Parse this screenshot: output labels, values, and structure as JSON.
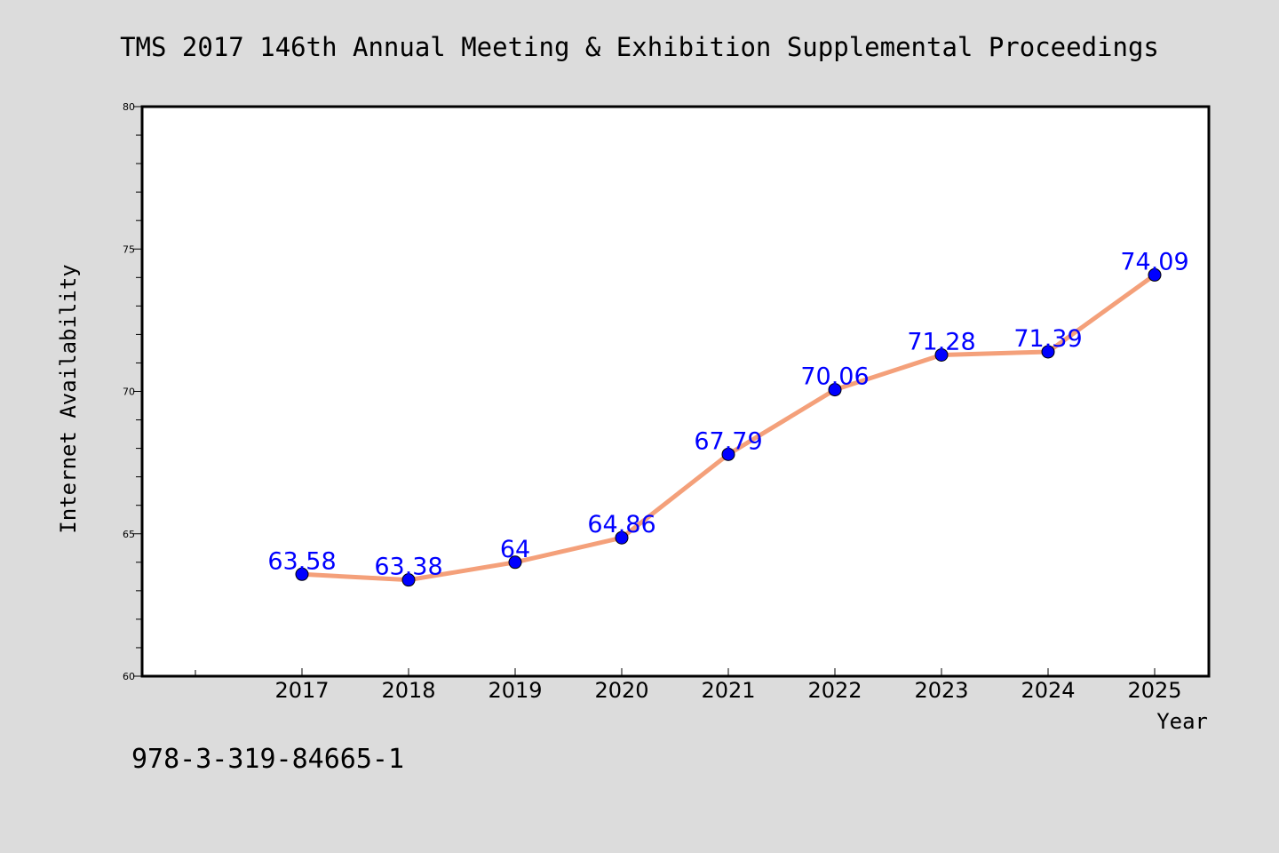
{
  "chart_data": {
    "type": "line",
    "title": "TMS 2017 146th Annual Meeting & Exhibition Supplemental Proceedings",
    "xlabel": "Year",
    "ylabel": "Internet Availability",
    "ylim": [
      60,
      80
    ],
    "yticks": [
      60,
      65,
      70,
      75,
      80
    ],
    "categories": [
      "2017",
      "2018",
      "2019",
      "2020",
      "2021",
      "2022",
      "2023",
      "2024",
      "2025"
    ],
    "series": [
      {
        "values": [
          63.58,
          63.38,
          64,
          64.86,
          67.79,
          70.06,
          71.28,
          71.39,
          74.09
        ],
        "labels": [
          "63.58",
          "63.38",
          "64",
          "64.86",
          "67.79",
          "70.06",
          "71.28",
          "71.39",
          "74.09"
        ]
      }
    ],
    "footer_text": "978-3-319-84665-1",
    "grid": false,
    "colors": {
      "background": "#dcdcdc",
      "plot_area": "#ffffff",
      "line": "#f4a07a",
      "marker": "#0000ff",
      "data_label": "#0000ff",
      "text": "#000000"
    }
  }
}
